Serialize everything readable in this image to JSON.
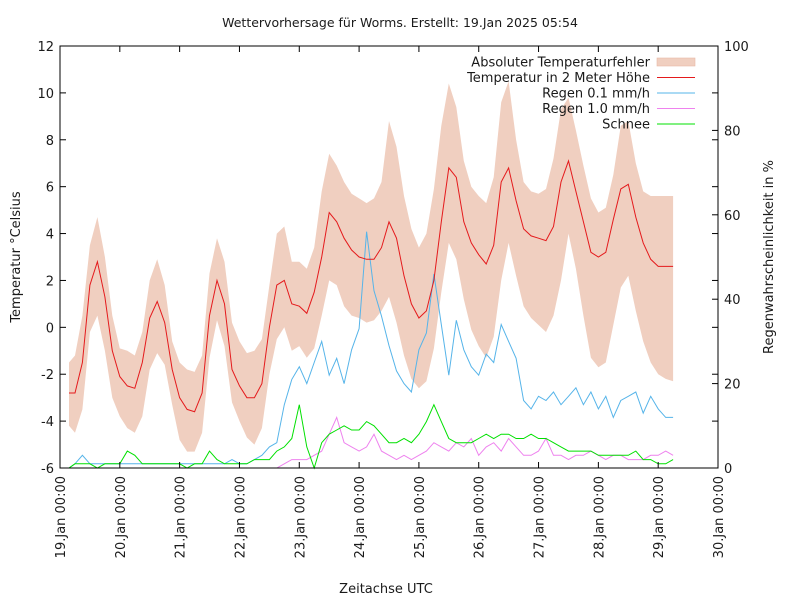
{
  "chart_data": {
    "type": "line",
    "title": "Wettervorhersage für Worms. Erstellt: 19.Jan 2025 05:54",
    "xlabel": "Zeitachse UTC",
    "ylabel": "Temperatur °Celsius",
    "y2label": "Regenwahrscheinlichkeit in %",
    "ylim": [
      -6,
      12
    ],
    "y2lim": [
      0,
      100
    ],
    "yticks": [
      -6,
      -4,
      -2,
      0,
      2,
      4,
      6,
      8,
      10,
      12
    ],
    "y2ticks": [
      0,
      20,
      40,
      60,
      80,
      100
    ],
    "xlim_days": [
      0,
      11
    ],
    "xtick_labels": [
      "19.Jan 00:00",
      "20.Jan 00:00",
      "21.Jan 00:00",
      "22.Jan 00:00",
      "23.Jan 00:00",
      "24.Jan 00:00",
      "25.Jan 00:00",
      "26.Jan 00:00",
      "27.Jan 00:00",
      "28.Jan 00:00",
      "29.Jan 00:00",
      "30.Jan 00:00"
    ],
    "grid": false,
    "legend_position": "top-right",
    "x_days": [
      0.15,
      0.25,
      0.375,
      0.5,
      0.625,
      0.75,
      0.875,
      1.0,
      1.125,
      1.25,
      1.375,
      1.5,
      1.625,
      1.75,
      1.875,
      2.0,
      2.125,
      2.25,
      2.375,
      2.5,
      2.625,
      2.75,
      2.875,
      3.0,
      3.125,
      3.25,
      3.375,
      3.5,
      3.625,
      3.75,
      3.875,
      4.0,
      4.125,
      4.25,
      4.375,
      4.5,
      4.625,
      4.75,
      4.875,
      5.0,
      5.125,
      5.25,
      5.375,
      5.5,
      5.625,
      5.75,
      5.875,
      6.0,
      6.125,
      6.25,
      6.375,
      6.5,
      6.625,
      6.75,
      6.875,
      7.0,
      7.125,
      7.25,
      7.375,
      7.5,
      7.625,
      7.75,
      7.875,
      8.0,
      8.125,
      8.25,
      8.375,
      8.5,
      8.625,
      8.75,
      8.875,
      9.0,
      9.125,
      9.25,
      9.375,
      9.5,
      9.625,
      9.75,
      9.875,
      10.0,
      10.125,
      10.25
    ],
    "series": [
      {
        "name": "Temperatur in 2 Meter Höhe",
        "color": "#e41a1c",
        "values": [
          -2.8,
          -2.8,
          -1.5,
          1.8,
          2.8,
          1.3,
          -1.0,
          -2.1,
          -2.5,
          -2.6,
          -1.5,
          0.4,
          1.1,
          0.2,
          -1.8,
          -3.0,
          -3.5,
          -3.6,
          -2.8,
          0.5,
          2.0,
          1.0,
          -1.8,
          -2.5,
          -3.0,
          -3.0,
          -2.4,
          0.0,
          1.8,
          2.0,
          1.0,
          0.9,
          0.6,
          1.5,
          3.0,
          4.9,
          4.5,
          3.8,
          3.3,
          3.0,
          2.9,
          2.9,
          3.4,
          4.5,
          3.8,
          2.2,
          1.0,
          0.4,
          0.7,
          2.0,
          4.5,
          6.8,
          6.4,
          4.5,
          3.6,
          3.1,
          2.7,
          3.5,
          6.2,
          6.8,
          5.4,
          4.2,
          3.9,
          3.8,
          3.7,
          4.3,
          6.2,
          7.1,
          5.8,
          4.5,
          3.2,
          3.0,
          3.2,
          4.6,
          5.9,
          6.1,
          4.7,
          3.6,
          2.9,
          2.6,
          2.6,
          2.6
        ]
      },
      {
        "name": "Absoluter Temperaturfehler",
        "color": "#f0cfc0",
        "type": "band",
        "lower": [
          -4.2,
          -4.5,
          -3.5,
          -0.2,
          0.5,
          -1.0,
          -3.0,
          -3.8,
          -4.3,
          -4.5,
          -3.8,
          -1.8,
          -1.1,
          -1.6,
          -3.3,
          -4.8,
          -5.3,
          -5.3,
          -4.5,
          -1.3,
          0.3,
          -0.8,
          -3.2,
          -4.0,
          -4.7,
          -5.0,
          -4.3,
          -2.0,
          -0.5,
          0.0,
          -1.0,
          -0.8,
          -1.3,
          -0.9,
          0.5,
          2.0,
          1.8,
          0.9,
          0.5,
          0.4,
          0.2,
          0.3,
          0.7,
          1.3,
          0.2,
          -1.2,
          -2.2,
          -2.6,
          -2.3,
          -0.9,
          1.5,
          3.6,
          2.9,
          1.2,
          -0.1,
          -0.8,
          -1.3,
          -0.4,
          2.0,
          3.6,
          2.2,
          0.9,
          0.4,
          0.1,
          -0.2,
          0.5,
          2.0,
          4.0,
          2.5,
          0.5,
          -1.3,
          -1.7,
          -1.5,
          0.1,
          1.7,
          2.2,
          0.7,
          -0.6,
          -1.5,
          -2.0,
          -2.2,
          -2.3
        ],
        "upper": [
          -1.5,
          -1.2,
          0.5,
          3.5,
          4.7,
          3.0,
          0.5,
          -0.9,
          -1.0,
          -1.2,
          -0.2,
          2.0,
          2.9,
          1.8,
          -0.6,
          -1.5,
          -1.8,
          -1.9,
          -1.2,
          2.3,
          3.8,
          2.8,
          0.2,
          -0.6,
          -1.1,
          -1.0,
          -0.5,
          1.8,
          4.0,
          4.3,
          2.8,
          2.8,
          2.5,
          3.4,
          5.8,
          7.4,
          6.9,
          6.2,
          5.7,
          5.5,
          5.3,
          5.5,
          6.2,
          8.8,
          7.7,
          5.6,
          4.2,
          3.4,
          4.0,
          5.9,
          8.6,
          10.4,
          9.4,
          7.1,
          6.0,
          5.6,
          5.3,
          6.4,
          9.6,
          10.5,
          8.0,
          6.2,
          5.8,
          5.7,
          5.9,
          7.2,
          9.3,
          9.8,
          8.4,
          6.9,
          5.5,
          4.9,
          5.1,
          6.5,
          8.6,
          8.8,
          7.0,
          5.8,
          5.6,
          5.6,
          5.6,
          5.6
        ]
      },
      {
        "name": "Regen 0.1 mm/h",
        "color": "#56b4e9",
        "axis": "y2",
        "values": [
          0,
          1,
          3,
          1,
          1,
          1,
          1,
          1,
          1,
          1,
          1,
          1,
          1,
          1,
          1,
          1,
          1,
          1,
          1,
          1,
          1,
          1,
          2,
          1,
          1,
          2,
          3,
          5,
          6,
          15,
          21,
          24,
          20,
          25,
          30,
          22,
          26,
          20,
          28,
          33,
          56,
          42,
          36,
          29,
          23,
          20,
          18,
          28,
          32,
          46,
          34,
          22,
          35,
          28,
          24,
          22,
          27,
          25,
          34,
          30,
          26,
          16,
          14,
          17,
          16,
          18,
          15,
          17,
          19,
          15,
          18,
          14,
          17,
          12,
          16,
          17,
          18,
          13,
          17,
          14,
          12,
          12
        ]
      },
      {
        "name": "Regen 1.0 mm/h",
        "color": "#ee82ee",
        "axis": "y2",
        "values": [
          0,
          0,
          0,
          0,
          0,
          0,
          0,
          0,
          0,
          0,
          0,
          0,
          0,
          0,
          0,
          0,
          0,
          0,
          0,
          0,
          0,
          0,
          0,
          0,
          0,
          0,
          0,
          0,
          0,
          1,
          2,
          2,
          2,
          3,
          4,
          8,
          12,
          6,
          5,
          4,
          5,
          8,
          4,
          3,
          2,
          3,
          2,
          3,
          4,
          6,
          5,
          4,
          6,
          5,
          7,
          3,
          5,
          6,
          4,
          7,
          5,
          3,
          3,
          4,
          7,
          3,
          3,
          2,
          3,
          3,
          4,
          3,
          2,
          3,
          3,
          2,
          2,
          2,
          3,
          3,
          4,
          3
        ]
      },
      {
        "name": "Schnee",
        "color": "#00e000",
        "axis": "y2",
        "values": [
          0,
          1,
          1,
          1,
          0,
          1,
          1,
          1,
          4,
          3,
          1,
          1,
          1,
          1,
          1,
          1,
          0,
          1,
          1,
          4,
          2,
          1,
          1,
          1,
          1,
          2,
          2,
          2,
          4,
          5,
          7,
          15,
          5,
          0,
          6,
          8,
          9,
          10,
          9,
          9,
          11,
          10,
          8,
          6,
          6,
          7,
          6,
          8,
          11,
          15,
          11,
          7,
          6,
          6,
          6,
          7,
          8,
          7,
          8,
          8,
          7,
          7,
          8,
          7,
          7,
          6,
          5,
          4,
          4,
          4,
          4,
          3,
          3,
          3,
          3,
          3,
          4,
          2,
          2,
          1,
          1,
          2
        ]
      }
    ]
  }
}
